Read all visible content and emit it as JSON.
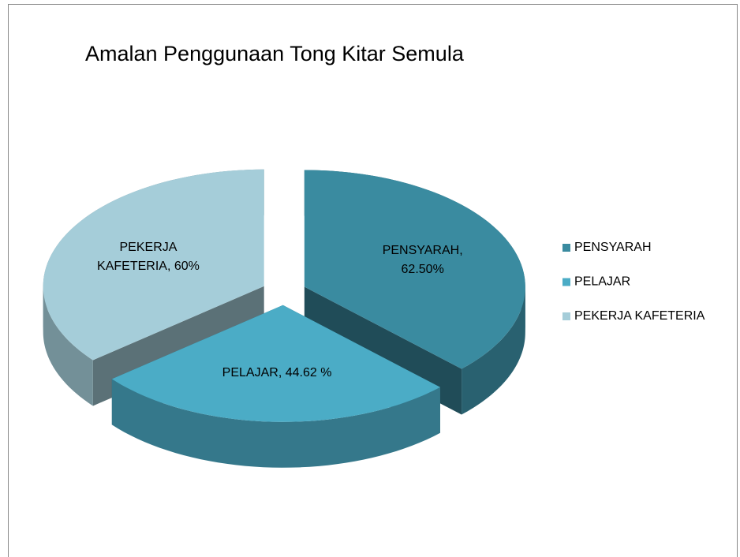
{
  "chart_data": {
    "type": "pie3d",
    "title": "Amalan  Penggunaan Tong Kitar Semula",
    "categories": [
      "PENSYARAH",
      "PELAJAR",
      "PEKERJA KAFETERIA"
    ],
    "values": [
      62.5,
      44.62,
      60
    ],
    "value_labels": [
      "PENSYARAH, 62.50%",
      "PELAJAR, 44.62 %",
      "PEKERJA KAFETERIA, 60%"
    ],
    "colors": [
      "#3a8ba0",
      "#4bacc6",
      "#a5cdd9"
    ],
    "legend": "right"
  }
}
